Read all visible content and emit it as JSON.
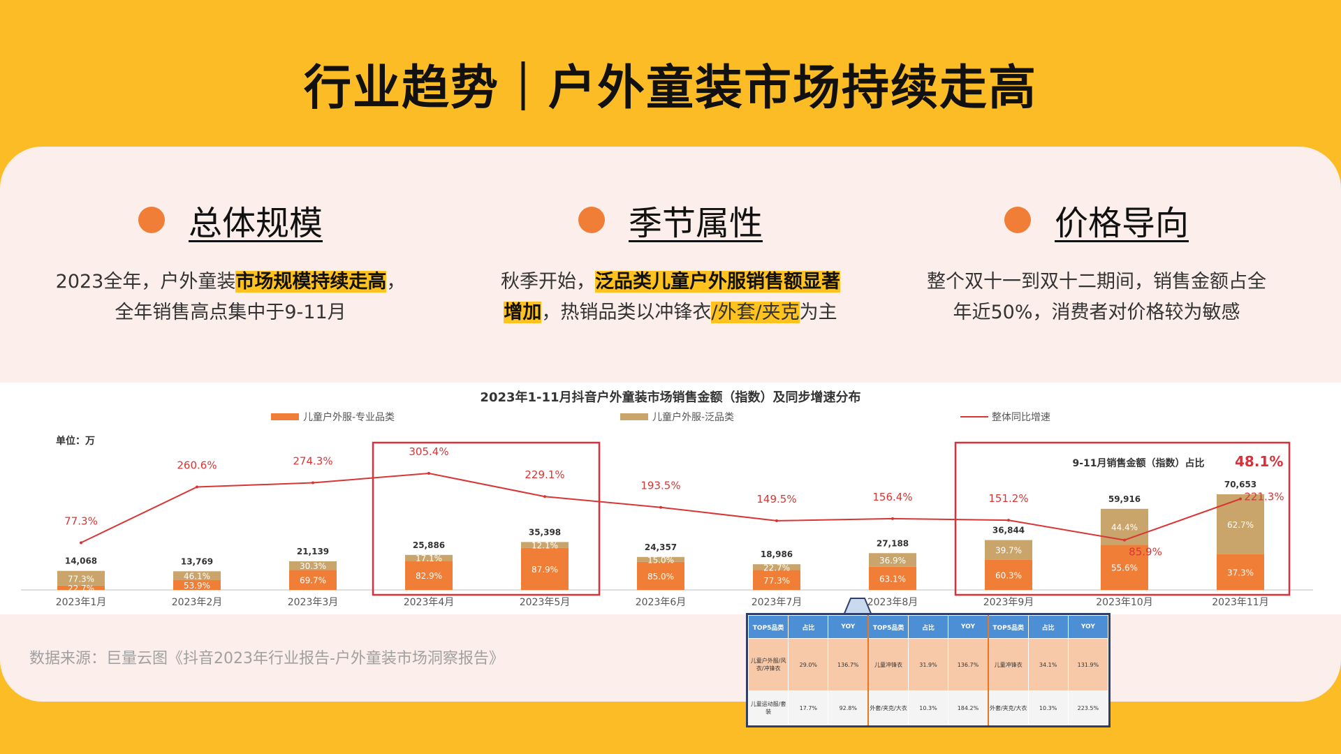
{
  "title": "行业趋势｜户外童装市场持续走高",
  "pillars": [
    {
      "title": "总体规模",
      "line1_pre": "2023全年，户外童装",
      "line1_hl": "市场规模持续走高",
      "line1_post": "，",
      "line2": "全年销售高点集中于9-11月"
    },
    {
      "title": "季节属性",
      "line1_pre": "秋季开始，",
      "line1_hl": "泛品类儿童户外服销售额显著",
      "line2_hl": "增加",
      "line2_mid": "，热销品类以冲锋衣",
      "line2_hl2": "/外套/夹克",
      "line2_post": "为主"
    },
    {
      "title": "价格导向",
      "line1": "整个双十一到双十二期间，销售金额占全",
      "line2": "年近50%，消费者对价格较为敏感"
    }
  ],
  "source": "数据来源：巨量云图《抖音2023年行业报告-户外童装市场洞察报告》",
  "colors": {
    "background": "#FBBC26",
    "panel": "#FCEEEA",
    "accent": "#F07E36",
    "professional": "#F07E36",
    "general": "#C9A46B",
    "yoy_line": "#D93535",
    "highlight_box": "#D9303A"
  },
  "chart_data": {
    "type": "bar",
    "title": "2023年1-11月抖音户外童装市场销售金额（指数）及同步增速分布",
    "unit_label": "单位：万",
    "categories": [
      "2023年1月",
      "2023年2月",
      "2023年3月",
      "2023年4月",
      "2023年5月",
      "2023年6月",
      "2023年7月",
      "2023年8月",
      "2023年9月",
      "2023年10月",
      "2023年11月"
    ],
    "totals": [
      14068,
      13769,
      21139,
      25886,
      35398,
      24357,
      18986,
      27188,
      36844,
      59916,
      70653
    ],
    "total_labels": [
      "14,068",
      "13,769",
      "21,139",
      "25,886",
      "35,398",
      "24,357",
      "18,986",
      "27,188",
      "36,844",
      "59,916",
      "70,653"
    ],
    "series": [
      {
        "name": "儿童户外服-专业品类",
        "share_labels": [
          "22.7%",
          "53.9%",
          "69.7%",
          "82.9%",
          "87.9%",
          "85.0%",
          "77.3%",
          "63.1%",
          "60.3%",
          "55.6%",
          "37.3%"
        ],
        "shares": [
          22.7,
          53.9,
          69.7,
          82.9,
          87.9,
          85.0,
          77.3,
          63.1,
          60.3,
          55.6,
          37.3
        ]
      },
      {
        "name": "儿童户外服-泛品类",
        "share_labels": [
          "77.3%",
          "46.1%",
          "30.3%",
          "17.1%",
          "12.1%",
          "15.0%",
          "22.7%",
          "36.9%",
          "39.7%",
          "44.4%",
          "62.7%"
        ],
        "shares": [
          77.3,
          46.1,
          30.3,
          17.1,
          12.1,
          15.0,
          22.7,
          36.9,
          39.7,
          44.4,
          62.7
        ]
      },
      {
        "name": "整体同比增速",
        "type": "line",
        "values": [
          77.3,
          260.6,
          274.3,
          305.4,
          229.1,
          193.5,
          149.5,
          156.4,
          151.2,
          85.9,
          221.3
        ],
        "labels": [
          "77.3%",
          "260.6%",
          "274.3%",
          "305.4%",
          "229.1%",
          "193.5%",
          "149.5%",
          "156.4%",
          "151.2%",
          "85.9%",
          "221.3%"
        ]
      }
    ],
    "annotation": {
      "text": "9-11月销售金额（指数）占比",
      "value": "48.1%"
    },
    "legend_position": "top"
  },
  "top_table": {
    "headers": [
      "TOP5品类",
      "占比",
      "YOY",
      "TOP5品类",
      "占比",
      "YOY",
      "TOP5品类",
      "占比",
      "YOY"
    ],
    "rows": [
      [
        "儿童户外服/风衣/冲锋衣",
        "29.0%",
        "136.7%",
        "儿童冲锋衣",
        "31.9%",
        "136.7%",
        "儿童冲锋衣",
        "34.1%",
        "131.9%"
      ],
      [
        "儿童运动服/套装",
        "17.7%",
        "92.8%",
        "外套/夹克/大衣",
        "10.3%",
        "184.2%",
        "外套/夹克/大衣",
        "10.3%",
        "223.5%"
      ]
    ]
  }
}
